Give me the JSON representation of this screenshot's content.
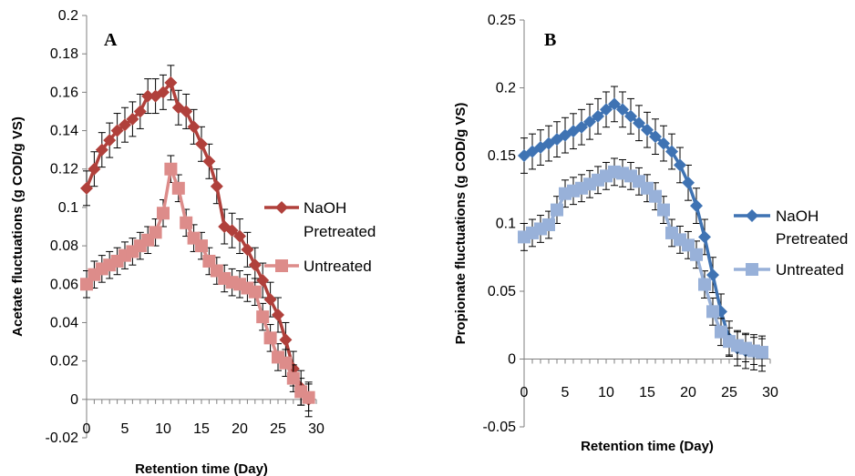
{
  "colors": {
    "naoh_a": "#b0403b",
    "untreated_a": "#dd8c8a",
    "naoh_b": "#3f73b3",
    "untreated_b": "#98b1d9",
    "axis": "#7f7f7f",
    "errorbar": "#000000"
  },
  "chart_data": [
    {
      "type": "line",
      "panel_label": "A",
      "xlabel": "Retention time (Day)",
      "ylabel": "Acetate fluctuations (g COD/g VS)",
      "xlim": [
        0,
        30
      ],
      "ylim": [
        -0.02,
        0.2
      ],
      "x_ticks": [
        0,
        5,
        10,
        15,
        20,
        25,
        30
      ],
      "y_ticks": [
        -0.02,
        0,
        0.02,
        0.04,
        0.06,
        0.08,
        0.1,
        0.12,
        0.14,
        0.16,
        0.18,
        0.2
      ],
      "y_tick_labels": [
        "-0.02",
        "0",
        "0.02",
        "0.04",
        "0.06",
        "0.08",
        "0.1",
        "0.12",
        "0.14",
        "0.16",
        "0.18",
        "0.2"
      ],
      "grid": false,
      "legend_position": "right",
      "series": [
        {
          "name": "NaOH Pretreated",
          "name_lines": [
            "NaOH",
            "Pretreated"
          ],
          "marker": "diamond",
          "x": [
            0,
            1,
            2,
            3,
            4,
            5,
            6,
            7,
            8,
            9,
            10,
            11,
            12,
            13,
            14,
            15,
            16,
            17,
            18,
            19,
            20,
            21,
            22,
            23,
            24,
            25,
            26,
            27,
            28,
            29
          ],
          "y": [
            0.11,
            0.12,
            0.13,
            0.135,
            0.14,
            0.143,
            0.146,
            0.15,
            0.158,
            0.158,
            0.16,
            0.165,
            0.152,
            0.15,
            0.142,
            0.133,
            0.124,
            0.111,
            0.09,
            0.088,
            0.085,
            0.078,
            0.07,
            0.062,
            0.052,
            0.044,
            0.031,
            0.016,
            0.006,
            0.0
          ],
          "err": 0.009
        },
        {
          "name": "Untreated",
          "name_lines": [
            "Untreated"
          ],
          "marker": "square",
          "x": [
            0,
            1,
            2,
            3,
            4,
            5,
            6,
            7,
            8,
            9,
            10,
            11,
            12,
            13,
            14,
            15,
            16,
            17,
            18,
            19,
            20,
            21,
            22,
            23,
            24,
            25,
            26,
            27,
            28,
            29
          ],
          "y": [
            0.06,
            0.065,
            0.068,
            0.07,
            0.072,
            0.075,
            0.077,
            0.08,
            0.083,
            0.087,
            0.097,
            0.12,
            0.11,
            0.092,
            0.084,
            0.08,
            0.072,
            0.067,
            0.063,
            0.061,
            0.06,
            0.058,
            0.056,
            0.043,
            0.032,
            0.022,
            0.019,
            0.011,
            0.004,
            0.001
          ],
          "err": 0.007
        }
      ]
    },
    {
      "type": "line",
      "panel_label": "B",
      "xlabel": "Retention time (Day)",
      "ylabel": "Propionate fluctuations (g COD/g VS)",
      "xlim": [
        0,
        30
      ],
      "ylim": [
        -0.05,
        0.25
      ],
      "x_ticks": [
        0,
        5,
        10,
        15,
        20,
        25,
        30
      ],
      "y_ticks": [
        -0.05,
        0,
        0.05,
        0.1,
        0.15,
        0.2,
        0.25
      ],
      "y_tick_labels": [
        "-0.05",
        "0",
        "0.05",
        "0.1",
        "0.15",
        "0.2",
        "0.25"
      ],
      "grid": false,
      "legend_position": "right",
      "series": [
        {
          "name": "NaOH Pretreated",
          "name_lines": [
            "NaOH",
            "Pretreated"
          ],
          "marker": "diamond",
          "x": [
            0,
            1,
            2,
            3,
            4,
            5,
            6,
            7,
            8,
            9,
            10,
            11,
            12,
            13,
            14,
            15,
            16,
            17,
            18,
            19,
            20,
            21,
            22,
            23,
            24,
            25,
            26,
            27,
            28,
            29
          ],
          "y": [
            0.15,
            0.153,
            0.156,
            0.159,
            0.162,
            0.165,
            0.168,
            0.171,
            0.175,
            0.179,
            0.184,
            0.188,
            0.184,
            0.179,
            0.174,
            0.169,
            0.164,
            0.159,
            0.153,
            0.143,
            0.13,
            0.113,
            0.09,
            0.062,
            0.035,
            0.015,
            0.008,
            0.006,
            0.005,
            0.004
          ],
          "err": 0.013
        },
        {
          "name": "Untreated",
          "name_lines": [
            "Untreated"
          ],
          "marker": "square",
          "x": [
            0,
            1,
            2,
            3,
            4,
            5,
            6,
            7,
            8,
            9,
            10,
            11,
            12,
            13,
            14,
            15,
            16,
            17,
            18,
            19,
            20,
            21,
            22,
            23,
            24,
            25,
            26,
            27,
            28,
            29
          ],
          "y": [
            0.09,
            0.093,
            0.096,
            0.099,
            0.11,
            0.122,
            0.124,
            0.126,
            0.129,
            0.132,
            0.135,
            0.138,
            0.137,
            0.135,
            0.131,
            0.126,
            0.12,
            0.11,
            0.093,
            0.088,
            0.084,
            0.077,
            0.055,
            0.035,
            0.02,
            0.013,
            0.01,
            0.008,
            0.006,
            0.005
          ],
          "err": 0.01
        }
      ]
    }
  ]
}
